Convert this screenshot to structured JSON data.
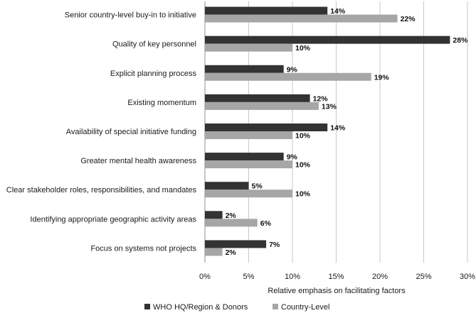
{
  "chart_data": {
    "type": "bar",
    "orientation": "horizontal",
    "categories": [
      "Senior country-level buy-in to initiative",
      "Quality of key personnel",
      "Explicit planning process",
      "Existing momentum",
      "Availability of special initiative funding",
      "Greater mental health awareness",
      "Clear stakeholder  roles, responsibilities, and mandates",
      "Identifying appropriate geographic activity areas",
      "Focus on systems not projects"
    ],
    "series": [
      {
        "name": "WHO HQ/Region & Donors",
        "color": "#333333",
        "values": [
          14,
          28,
          9,
          12,
          14,
          9,
          5,
          2,
          7
        ],
        "labels": [
          "14%",
          "28%",
          "9%",
          "12%",
          "14%",
          "9%",
          "5%",
          "2%",
          "7%"
        ]
      },
      {
        "name": "Country-Level",
        "color": "#a6a6a6",
        "values": [
          22,
          10,
          19,
          13,
          10,
          10,
          10,
          6,
          2
        ],
        "labels": [
          "22%",
          "10%",
          "19%",
          "13%",
          "10%",
          "10%",
          "10%",
          "6%",
          "2%"
        ]
      }
    ],
    "xlim": [
      0,
      30
    ],
    "xticks": [
      0,
      5,
      10,
      15,
      20,
      25,
      30
    ],
    "xtick_labels": [
      "0%",
      "5%",
      "10%",
      "15%",
      "20%",
      "25%",
      "30%"
    ],
    "xlabel": "Relative emphasis on facilitating factors",
    "ylabel": "",
    "grid": "vertical",
    "legend": "bottom"
  }
}
